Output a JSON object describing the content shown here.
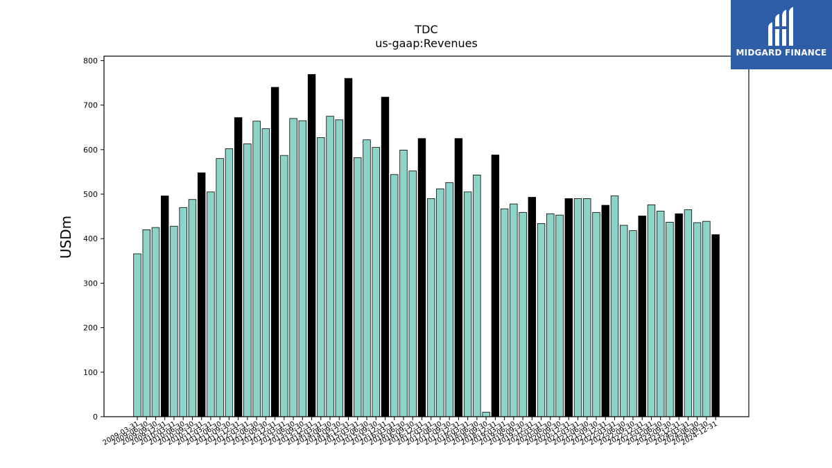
{
  "logo": {
    "text": "MIDGARD FINANCE",
    "background": "#2f5ea9"
  },
  "chart_data": {
    "type": "bar",
    "title": "TDC",
    "subtitle": "us-gaap:Revenues",
    "ylabel": "USDm",
    "xlabel": "",
    "ylim": [
      0,
      810
    ],
    "yticks": [
      0,
      100,
      200,
      300,
      400,
      500,
      600,
      700,
      800
    ],
    "grid": false,
    "colors": {
      "quarter": "#8dd3c7",
      "year_end": "#000000",
      "edge": "#000000"
    },
    "categories": [
      "2009-03-31",
      "2009-06-30",
      "2009-09-30",
      "2009-12-31",
      "2010-03-31",
      "2010-06-30",
      "2010-09-30",
      "2010-12-31",
      "2011-03-31",
      "2011-06-30",
      "2011-09-30",
      "2011-12-31",
      "2012-03-31",
      "2012-06-30",
      "2012-09-30",
      "2012-12-31",
      "2013-03-31",
      "2013-06-30",
      "2013-09-30",
      "2013-12-31",
      "2014-03-31",
      "2014-06-30",
      "2014-09-30",
      "2014-12-31",
      "2015-03-31",
      "2015-06-30",
      "2015-09-30",
      "2015-12-31",
      "2016-03-31",
      "2016-06-30",
      "2016-09-30",
      "2016-12-31",
      "2017-03-31",
      "2017-06-30",
      "2017-09-30",
      "2017-12-31",
      "2018-03-31",
      "2018-06-30",
      "2018-09-30",
      "2018-12-31",
      "2019-03-31",
      "2019-06-30",
      "2019-09-30",
      "2019-12-31",
      "2020-03-31",
      "2020-06-30",
      "2020-09-30",
      "2020-12-31",
      "2021-03-31",
      "2021-06-30",
      "2021-09-30",
      "2021-12-31",
      "2022-03-31",
      "2022-06-30",
      "2022-09-30",
      "2022-12-31",
      "2023-03-31",
      "2023-06-30",
      "2023-09-30",
      "2023-12-31",
      "2024-03-31",
      "2024-06-30",
      "2024-09-30",
      "2024-12-31"
    ],
    "values": [
      366,
      420,
      425,
      496,
      428,
      470,
      488,
      548,
      505,
      580,
      602,
      672,
      613,
      664,
      647,
      740,
      587,
      670,
      665,
      769,
      627,
      675,
      667,
      760,
      582,
      622,
      605,
      718,
      544,
      599,
      552,
      625,
      490,
      512,
      526,
      625,
      505,
      543,
      10,
      588,
      467,
      478,
      459,
      493,
      434,
      456,
      453,
      490,
      490,
      490,
      459,
      475,
      496,
      430,
      418,
      451,
      476,
      462,
      437,
      456,
      465,
      436,
      439,
      409
    ]
  }
}
